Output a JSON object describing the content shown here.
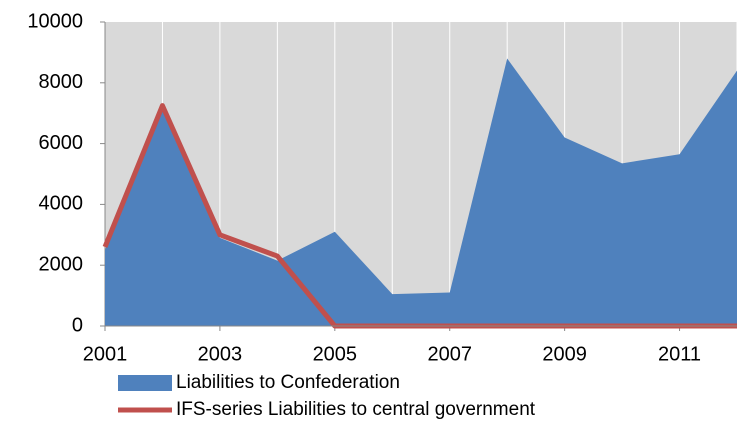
{
  "chart_data": {
    "type": "area",
    "x": [
      2001,
      2002,
      2003,
      2004,
      2005,
      2006,
      2007,
      2008,
      2009,
      2010,
      2011,
      2012
    ],
    "series": [
      {
        "name": "Liabilities to Confederation",
        "type": "area",
        "color": "#4f81bd",
        "values": [
          2500,
          7100,
          2900,
          2150,
          3100,
          1050,
          1100,
          8800,
          6200,
          5350,
          5650,
          8400
        ]
      },
      {
        "name": "IFS-series Liabilities to central government",
        "type": "line",
        "color": "#c0504d",
        "values": [
          2600,
          7250,
          3000,
          2300,
          0,
          0,
          0,
          0,
          0,
          0,
          0,
          0
        ]
      }
    ],
    "xlim": [
      2001,
      2012
    ],
    "xticks": [
      2001,
      2003,
      2005,
      2007,
      2009,
      2011
    ],
    "x_gridlines": [
      2001,
      2002,
      2003,
      2004,
      2005,
      2006,
      2007,
      2008,
      2009,
      2010,
      2011,
      2012
    ],
    "ylim": [
      0,
      10000
    ],
    "yticks": [
      0,
      2000,
      4000,
      6000,
      8000,
      10000
    ],
    "plot_background": "#d9d9d9",
    "legend": "bottom"
  }
}
